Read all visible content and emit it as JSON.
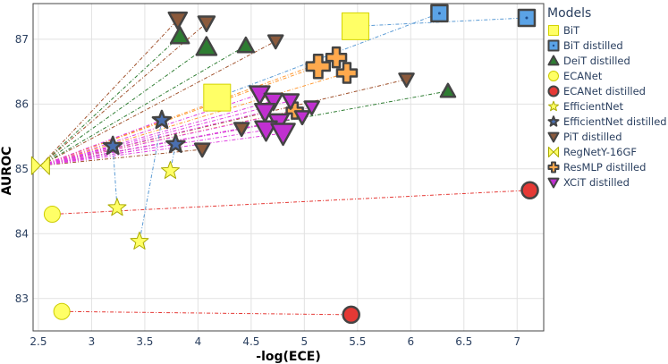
{
  "chart_data": {
    "type": "scatter",
    "title": "",
    "xlabel": "-log(ECE)",
    "ylabel": "AUROC",
    "xlim": [
      2.45,
      7.25
    ],
    "ylim": [
      82.5,
      87.55
    ],
    "xticks": [
      2.5,
      3,
      3.5,
      4,
      4.5,
      5,
      5.5,
      6,
      6.5,
      7
    ],
    "xtick_labels": [
      "2.5",
      "3",
      "3.5",
      "4",
      "4.5",
      "5",
      "5.5",
      "6",
      "6.5",
      "7"
    ],
    "yticks": [
      83,
      84,
      85,
      86,
      87
    ],
    "ytick_labels": [
      "83",
      "84",
      "85",
      "86",
      "87"
    ],
    "grid": true,
    "legend_position": "right",
    "legend_title": "Models",
    "origin": {
      "x": 2.52,
      "y": 85.05
    },
    "series": [
      {
        "name": "BiT",
        "shape": "square",
        "color": "#ffff66",
        "outline": "#d4d400",
        "points": [
          {
            "x": 5.48,
            "y": 87.2,
            "s": 30
          },
          {
            "x": 4.18,
            "y": 86.1,
            "s": 30
          }
        ]
      },
      {
        "name": "BiT distilled",
        "shape": "square",
        "color": "#5ba3e6",
        "outline": "#444444",
        "points": [
          {
            "x": 6.27,
            "y": 87.4,
            "s": 18
          },
          {
            "x": 7.09,
            "y": 87.33,
            "s": 18
          }
        ]
      },
      {
        "name": "DeiT distilled",
        "shape": "triangle-up",
        "color": "#2e7d32",
        "outline": "#444444",
        "points": [
          {
            "x": 3.83,
            "y": 87.05,
            "s": 20
          },
          {
            "x": 4.08,
            "y": 86.88,
            "s": 22
          },
          {
            "x": 4.45,
            "y": 86.9,
            "s": 18
          },
          {
            "x": 6.35,
            "y": 86.2,
            "s": 16
          }
        ]
      },
      {
        "name": "ECANet",
        "shape": "circle",
        "color": "#ffff66",
        "outline": "#cccc00",
        "points": [
          {
            "x": 2.63,
            "y": 84.3,
            "s": 18
          },
          {
            "x": 2.72,
            "y": 82.8,
            "s": 18
          }
        ]
      },
      {
        "name": "ECANet distilled",
        "shape": "circle",
        "color": "#e53935",
        "outline": "#444444",
        "points": [
          {
            "x": 7.12,
            "y": 84.67,
            "s": 18
          },
          {
            "x": 5.44,
            "y": 82.75,
            "s": 18
          }
        ]
      },
      {
        "name": "EfficientNet",
        "shape": "star",
        "color": "#ffff66",
        "outline": "#aaaa00",
        "points": [
          {
            "x": 3.24,
            "y": 84.4,
            "s": 20
          },
          {
            "x": 3.45,
            "y": 83.88,
            "s": 20
          },
          {
            "x": 3.74,
            "y": 84.97,
            "s": 20
          }
        ]
      },
      {
        "name": "EfficientNet distilled",
        "shape": "star",
        "color": "#4a6fb0",
        "outline": "#444444",
        "points": [
          {
            "x": 3.2,
            "y": 85.35,
            "s": 20
          },
          {
            "x": 3.66,
            "y": 85.75,
            "s": 20
          },
          {
            "x": 3.79,
            "y": 85.38,
            "s": 20
          }
        ]
      },
      {
        "name": "PiT distilled",
        "shape": "triangle-down",
        "color": "#8b5a3c",
        "outline": "#444444",
        "points": [
          {
            "x": 3.81,
            "y": 87.3,
            "s": 20
          },
          {
            "x": 4.08,
            "y": 87.25,
            "s": 18
          },
          {
            "x": 4.73,
            "y": 86.97,
            "s": 16
          },
          {
            "x": 5.96,
            "y": 86.38,
            "s": 16
          },
          {
            "x": 4.41,
            "y": 85.62,
            "s": 16
          },
          {
            "x": 4.04,
            "y": 85.3,
            "s": 16
          }
        ]
      },
      {
        "name": "RegNetY-16GF",
        "shape": "bowtie",
        "color": "#ffff66",
        "outline": "#aaaa00",
        "points": [
          {
            "x": 2.52,
            "y": 85.05,
            "s": 20
          }
        ]
      },
      {
        "name": "ResMLP distilled",
        "shape": "cross",
        "color": "#ffa94d",
        "outline": "#444444",
        "points": [
          {
            "x": 5.13,
            "y": 86.58,
            "s": 26
          },
          {
            "x": 5.3,
            "y": 86.72,
            "s": 22
          },
          {
            "x": 5.4,
            "y": 86.48,
            "s": 22
          },
          {
            "x": 4.91,
            "y": 85.9,
            "s": 18
          }
        ]
      },
      {
        "name": "XCiT distilled",
        "shape": "triangle-down",
        "color": "#c030d0",
        "outline": "#444444",
        "points": [
          {
            "x": 4.58,
            "y": 86.15,
            "s": 22
          },
          {
            "x": 4.71,
            "y": 86.05,
            "s": 20
          },
          {
            "x": 4.63,
            "y": 85.88,
            "s": 22
          },
          {
            "x": 4.76,
            "y": 85.72,
            "s": 22
          },
          {
            "x": 4.87,
            "y": 86.05,
            "s": 18
          },
          {
            "x": 4.98,
            "y": 85.8,
            "s": 16
          },
          {
            "x": 5.07,
            "y": 85.95,
            "s": 16
          },
          {
            "x": 4.64,
            "y": 85.6,
            "s": 24
          },
          {
            "x": 4.8,
            "y": 85.55,
            "s": 26
          }
        ]
      }
    ],
    "connectors": [
      {
        "color": "#2e7d32",
        "from": {
          "x": 2.52,
          "y": 85.05
        },
        "to": [
          {
            "x": 3.83,
            "y": 87.05
          },
          {
            "x": 4.08,
            "y": 86.88
          },
          {
            "x": 4.45,
            "y": 86.9
          },
          {
            "x": 6.35,
            "y": 86.2
          }
        ]
      },
      {
        "color": "#a0522d",
        "from": {
          "x": 2.52,
          "y": 85.05
        },
        "to": [
          {
            "x": 3.81,
            "y": 87.3
          },
          {
            "x": 4.08,
            "y": 87.25
          },
          {
            "x": 4.73,
            "y": 86.97
          },
          {
            "x": 5.96,
            "y": 86.38
          },
          {
            "x": 4.41,
            "y": 85.62
          },
          {
            "x": 4.04,
            "y": 85.3
          }
        ]
      },
      {
        "color": "#ff9933",
        "from": {
          "x": 2.52,
          "y": 85.05
        },
        "to": [
          {
            "x": 5.13,
            "y": 86.58
          },
          {
            "x": 5.3,
            "y": 86.72
          },
          {
            "x": 5.4,
            "y": 86.48
          },
          {
            "x": 4.91,
            "y": 85.9
          }
        ]
      },
      {
        "color": "#e040e0",
        "from": {
          "x": 2.52,
          "y": 85.05
        },
        "to": [
          {
            "x": 4.58,
            "y": 86.15
          },
          {
            "x": 4.71,
            "y": 86.05
          },
          {
            "x": 4.63,
            "y": 85.88
          },
          {
            "x": 4.76,
            "y": 85.72
          },
          {
            "x": 4.87,
            "y": 86.05
          },
          {
            "x": 4.98,
            "y": 85.8
          },
          {
            "x": 5.07,
            "y": 85.95
          },
          {
            "x": 4.64,
            "y": 85.6
          },
          {
            "x": 4.8,
            "y": 85.55
          }
        ]
      },
      {
        "color": "#e040e0",
        "from": {
          "x": 2.52,
          "y": 85.05
        },
        "to": [
          {
            "x": 3.2,
            "y": 85.35
          },
          {
            "x": 3.66,
            "y": 85.75
          },
          {
            "x": 3.79,
            "y": 85.38
          }
        ]
      },
      {
        "color": "#5b9bd5",
        "pairs": [
          [
            {
              "x": 4.18,
              "y": 86.1
            },
            {
              "x": 6.27,
              "y": 87.4
            }
          ],
          [
            {
              "x": 5.48,
              "y": 87.2
            },
            {
              "x": 7.09,
              "y": 87.33
            }
          ],
          [
            {
              "x": 3.24,
              "y": 84.4
            },
            {
              "x": 3.2,
              "y": 85.35
            }
          ],
          [
            {
              "x": 3.45,
              "y": 83.88
            },
            {
              "x": 3.66,
              "y": 85.75
            }
          ],
          [
            {
              "x": 3.74,
              "y": 84.97
            },
            {
              "x": 3.79,
              "y": 85.38
            }
          ]
        ]
      },
      {
        "color": "#e53935",
        "pairs": [
          [
            {
              "x": 2.63,
              "y": 84.3
            },
            {
              "x": 7.12,
              "y": 84.67
            }
          ],
          [
            {
              "x": 2.72,
              "y": 82.8
            },
            {
              "x": 5.44,
              "y": 82.75
            }
          ]
        ]
      }
    ]
  }
}
